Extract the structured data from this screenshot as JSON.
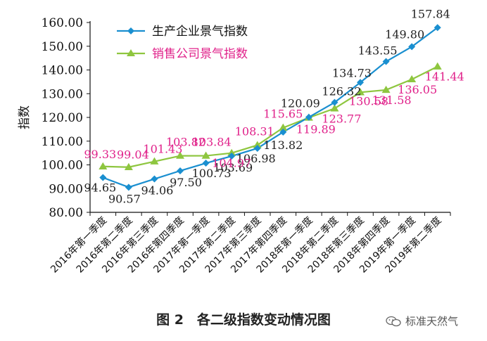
{
  "caption": "图 2　各二级指数变动情况图",
  "watermark": "标准天然气",
  "colors": {
    "series1": "#1a8fd0",
    "series2": "#8ec63f",
    "series2_labels": "#e0218a",
    "axis": "#111111"
  },
  "chart_data": {
    "type": "line",
    "ylabel": "指数",
    "ylim": [
      80,
      160
    ],
    "yticks": [
      "80.00",
      "90.00",
      "100.00",
      "110.00",
      "120.00",
      "130.00",
      "140.00",
      "150.00",
      "160.00"
    ],
    "categories": [
      "2016年第一季度",
      "2016年第二季度",
      "2016年第三季度",
      "2016年第四季度",
      "2017年第一季度",
      "2017年第二季度",
      "2017年第三季度",
      "2017年第四季度",
      "2018年第一季度",
      "2018年第二季度",
      "2018年第三季度",
      "2018年第四季度",
      "2019年第一季度",
      "2019年第二季度"
    ],
    "legend_position": "top-left",
    "series": [
      {
        "name": "生产企业景气指数",
        "marker": "diamond",
        "values": [
          94.65,
          90.57,
          94.06,
          97.5,
          100.73,
          103.69,
          106.98,
          113.82,
          120.09,
          126.32,
          134.73,
          143.55,
          149.8,
          157.84
        ],
        "labels": [
          "94.65",
          "90.57",
          "94.06",
          "97.50",
          "100.73",
          "103.69",
          "106.98",
          "113.82",
          "120.09",
          "126.32",
          "134.73",
          "143.55",
          "149.80",
          "157.84"
        ]
      },
      {
        "name": "销售公司景气指数",
        "marker": "triangle",
        "values": [
          99.33,
          99.04,
          101.43,
          103.82,
          103.84,
          104.97,
          108.31,
          115.65,
          119.89,
          123.77,
          130.58,
          131.58,
          136.05,
          141.44
        ],
        "labels": [
          "99.33",
          "99.04",
          "101.43",
          "103.82",
          "103.84",
          "104.97",
          "108.31",
          "115.65",
          "119.89",
          "123.77",
          "130.58",
          "131.58",
          "136.05",
          "141.44"
        ]
      }
    ]
  }
}
